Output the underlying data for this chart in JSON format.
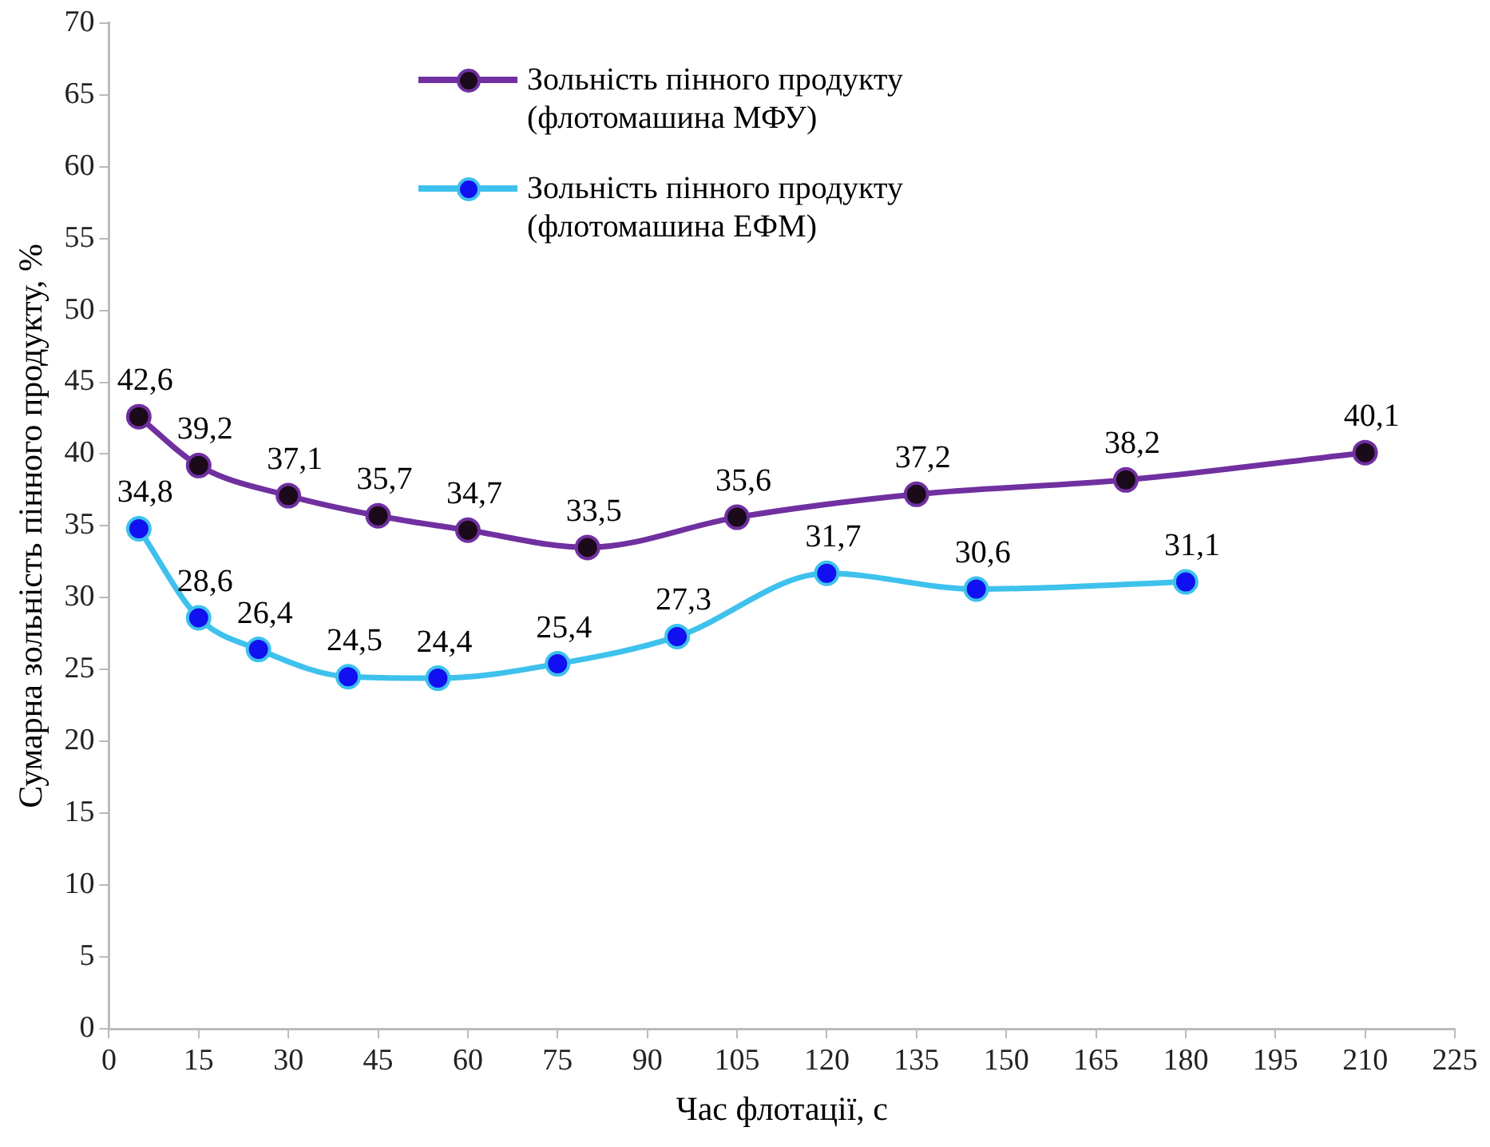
{
  "chart_data": {
    "type": "line",
    "xlabel": "Час флотації, с",
    "ylabel": "Сумарна зольність пінного продукту, %",
    "xlim": [
      0,
      225
    ],
    "xticks": [
      0,
      15,
      30,
      45,
      60,
      75,
      90,
      105,
      120,
      135,
      150,
      165,
      180,
      195,
      210,
      225
    ],
    "ylim": [
      0,
      70
    ],
    "yticks": [
      0,
      5,
      10,
      15,
      20,
      25,
      30,
      35,
      40,
      45,
      50,
      55,
      60,
      65,
      70
    ],
    "grid": false,
    "legend": "top",
    "marker": "circle",
    "line_style": "solid",
    "series": [
      {
        "name": "Зольність пінного продукту (флотомашина МФУ)",
        "color": "#7030a0",
        "x": [
          5,
          15,
          30,
          45,
          60,
          80,
          105,
          135,
          170,
          210
        ],
        "values": [
          42.6,
          39.2,
          37.1,
          35.7,
          34.7,
          33.5,
          35.6,
          37.2,
          38.2,
          40.1
        ],
        "value_labels": [
          "42,6",
          "39,2",
          "37,1",
          "35,7",
          "34,7",
          "33,5",
          "35,6",
          "37,2",
          "38,2",
          "40,1"
        ]
      },
      {
        "name": "Зольність пінного продукту (флотомашина ЕФМ)",
        "color": "#3ec1ec",
        "x": [
          5,
          15,
          25,
          40,
          55,
          75,
          95,
          120,
          145,
          180
        ],
        "values": [
          34.8,
          28.6,
          26.4,
          24.5,
          24.4,
          25.4,
          27.3,
          31.7,
          30.6,
          31.1
        ],
        "value_labels": [
          "34,8",
          "28,6",
          "26,4",
          "24,5",
          "24,4",
          "25,4",
          "27,3",
          "31,7",
          "30,6",
          "31,1"
        ]
      }
    ]
  }
}
